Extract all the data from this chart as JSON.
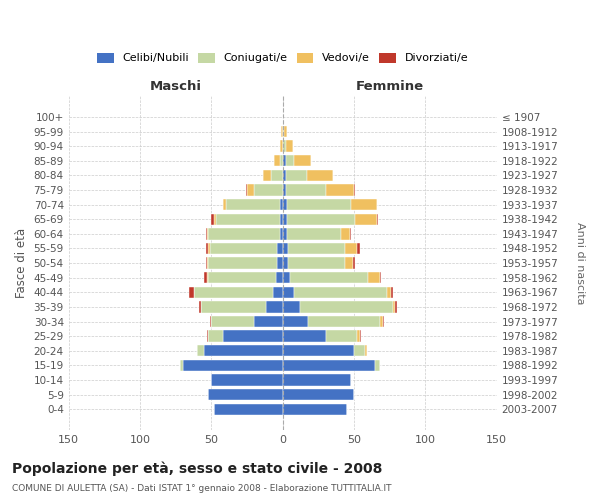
{
  "age_groups": [
    "0-4",
    "5-9",
    "10-14",
    "15-19",
    "20-24",
    "25-29",
    "30-34",
    "35-39",
    "40-44",
    "45-49",
    "50-54",
    "55-59",
    "60-64",
    "65-69",
    "70-74",
    "75-79",
    "80-84",
    "85-89",
    "90-94",
    "95-99",
    "100+"
  ],
  "birth_years": [
    "2003-2007",
    "1998-2002",
    "1993-1997",
    "1988-1992",
    "1983-1987",
    "1978-1982",
    "1973-1977",
    "1968-1972",
    "1963-1967",
    "1958-1962",
    "1953-1957",
    "1948-1952",
    "1943-1947",
    "1938-1942",
    "1933-1937",
    "1928-1932",
    "1923-1927",
    "1918-1922",
    "1913-1917",
    "1908-1912",
    "≤ 1907"
  ],
  "colors": {
    "single": "#4472C4",
    "married": "#C5D8A4",
    "widowed": "#F0C060",
    "divorced": "#C0382B"
  },
  "males": {
    "single": [
      48,
      52,
      50,
      70,
      55,
      42,
      20,
      12,
      7,
      5,
      4,
      4,
      2,
      2,
      2,
      0,
      0,
      0,
      0,
      0,
      0
    ],
    "married": [
      0,
      0,
      0,
      2,
      5,
      10,
      30,
      45,
      55,
      47,
      48,
      47,
      50,
      45,
      38,
      20,
      8,
      2,
      0,
      0,
      0
    ],
    "widowed": [
      0,
      0,
      0,
      0,
      0,
      0,
      0,
      0,
      0,
      1,
      1,
      1,
      1,
      1,
      2,
      5,
      6,
      4,
      2,
      1,
      0
    ],
    "divorced": [
      0,
      0,
      0,
      0,
      0,
      1,
      1,
      2,
      4,
      2,
      1,
      2,
      1,
      2,
      0,
      1,
      0,
      0,
      0,
      0,
      0
    ]
  },
  "females": {
    "single": [
      45,
      50,
      48,
      65,
      50,
      30,
      18,
      12,
      8,
      5,
      4,
      4,
      3,
      3,
      3,
      2,
      2,
      2,
      0,
      0,
      0
    ],
    "married": [
      0,
      0,
      0,
      3,
      8,
      22,
      50,
      65,
      65,
      55,
      40,
      40,
      38,
      48,
      45,
      28,
      15,
      6,
      2,
      1,
      0
    ],
    "widowed": [
      0,
      0,
      0,
      0,
      1,
      2,
      2,
      2,
      3,
      8,
      5,
      8,
      6,
      15,
      18,
      20,
      18,
      12,
      5,
      2,
      0
    ],
    "divorced": [
      0,
      0,
      0,
      0,
      0,
      1,
      1,
      1,
      1,
      1,
      2,
      2,
      1,
      1,
      0,
      1,
      0,
      0,
      0,
      0,
      0
    ]
  },
  "title": "Popolazione per età, sesso e stato civile - 2008",
  "subtitle": "COMUNE DI AULETTA (SA) - Dati ISTAT 1° gennaio 2008 - Elaborazione TUTTITALIA.IT",
  "ylabel": "Fasce di età",
  "ylabel_right": "Anni di nascita",
  "xlabel_left": "Maschi",
  "xlabel_right": "Femmine",
  "xlim": 150,
  "background": "#ffffff",
  "grid_color": "#cccccc"
}
